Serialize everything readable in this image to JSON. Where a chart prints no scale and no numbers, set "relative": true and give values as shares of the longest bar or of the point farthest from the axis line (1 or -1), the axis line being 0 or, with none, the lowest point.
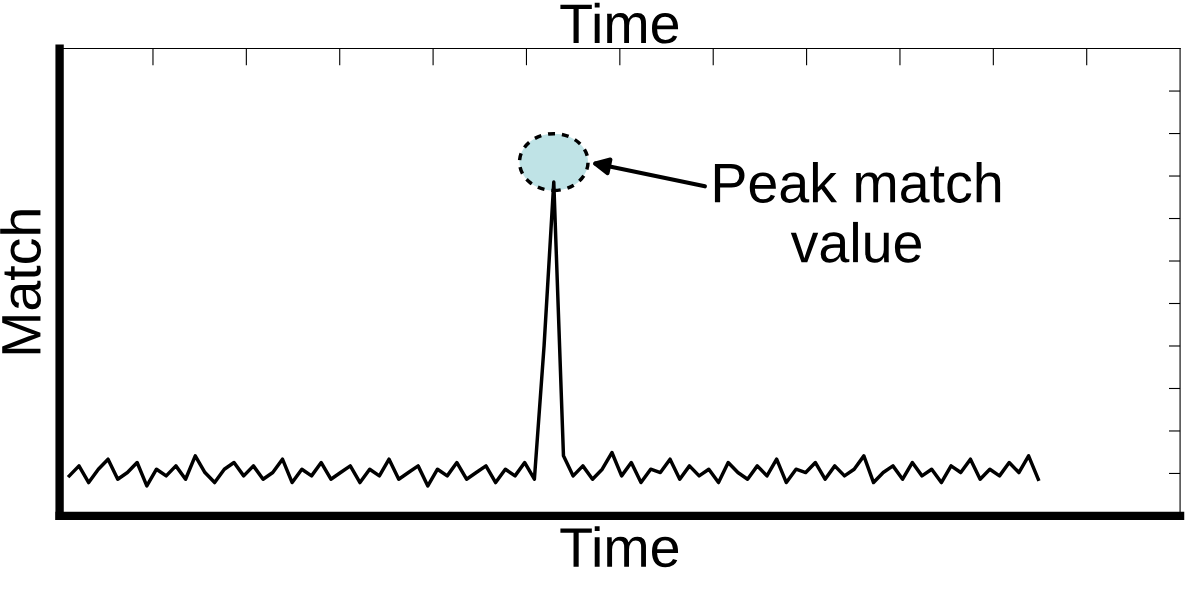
{
  "chart_data": {
    "type": "line",
    "relative": true,
    "title": "Time",
    "xlabel": "Time",
    "ylabel": "Match",
    "color": "#000000",
    "categories": [
      null,
      null,
      null,
      null,
      null,
      null,
      null,
      null,
      null,
      null,
      null,
      null,
      null,
      null,
      null,
      null,
      null,
      null,
      null,
      null,
      null,
      null,
      null,
      null,
      null,
      null,
      null,
      null,
      null,
      null,
      null,
      null,
      null,
      null,
      null,
      null,
      null,
      null,
      null,
      null,
      null,
      null,
      null,
      null,
      null,
      null,
      null,
      null,
      null,
      null,
      null,
      null,
      null,
      null,
      null,
      null,
      null,
      null,
      null,
      null,
      null,
      null,
      null,
      null,
      null,
      null,
      null,
      null,
      null,
      null,
      null,
      null,
      null,
      null,
      null,
      null,
      null,
      null,
      null,
      null,
      null,
      null,
      null,
      null,
      null,
      null,
      null,
      null,
      null,
      null,
      null,
      null,
      null,
      null,
      null,
      null,
      null,
      null,
      null,
      null,
      null
    ],
    "values": [
      0.12,
      0.15,
      0.1,
      0.14,
      0.17,
      0.11,
      0.13,
      0.16,
      0.09,
      0.14,
      0.12,
      0.15,
      0.11,
      0.18,
      0.13,
      0.1,
      0.14,
      0.16,
      0.12,
      0.15,
      0.11,
      0.13,
      0.17,
      0.1,
      0.14,
      0.12,
      0.16,
      0.11,
      0.13,
      0.15,
      0.1,
      0.14,
      0.12,
      0.17,
      0.11,
      0.13,
      0.15,
      0.09,
      0.14,
      0.12,
      0.16,
      0.11,
      0.13,
      0.15,
      0.1,
      0.14,
      0.12,
      0.16,
      0.11,
      0.51,
      1.0,
      0.18,
      0.12,
      0.15,
      0.11,
      0.14,
      0.19,
      0.12,
      0.16,
      0.1,
      0.14,
      0.13,
      0.17,
      0.11,
      0.15,
      0.12,
      0.14,
      0.1,
      0.16,
      0.13,
      0.11,
      0.15,
      0.12,
      0.17,
      0.1,
      0.14,
      0.13,
      0.16,
      0.11,
      0.15,
      0.12,
      0.14,
      0.18,
      0.1,
      0.13,
      0.15,
      0.11,
      0.16,
      0.12,
      0.14,
      0.1,
      0.15,
      0.13,
      0.17,
      0.11,
      0.14,
      0.12,
      0.16,
      0.13,
      0.18,
      0.11
    ],
    "annotations": [
      "Peak match\nvalue"
    ]
  }
}
